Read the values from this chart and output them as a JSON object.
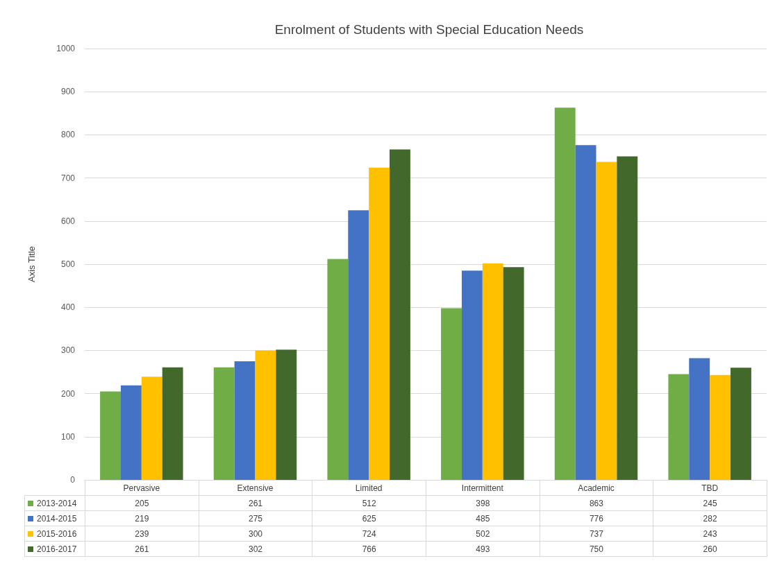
{
  "chart_data": {
    "type": "bar",
    "title": "Enrolment of Students with Special Education Needs",
    "ylabel": "Axis Title",
    "categories": [
      "Pervasive",
      "Extensive",
      "Limited",
      "Intermittent",
      "Academic",
      "TBD"
    ],
    "series": [
      {
        "name": "2013-2014",
        "color": "#70ad47",
        "values": [
          205,
          261,
          512,
          398,
          863,
          245
        ]
      },
      {
        "name": "2014-2015",
        "color": "#4472c4",
        "values": [
          219,
          275,
          625,
          485,
          776,
          282
        ]
      },
      {
        "name": "2015-2016",
        "color": "#ffc000",
        "values": [
          239,
          300,
          724,
          502,
          737,
          243
        ]
      },
      {
        "name": "2016-2017",
        "color": "#43682b",
        "values": [
          261,
          302,
          766,
          493,
          750,
          260
        ]
      }
    ],
    "ylim": [
      0,
      1000
    ],
    "yticks": [
      0,
      100,
      200,
      300,
      400,
      500,
      600,
      700,
      800,
      900,
      1000
    ],
    "grid": "y",
    "legend": "bottom",
    "data_labels": true
  }
}
